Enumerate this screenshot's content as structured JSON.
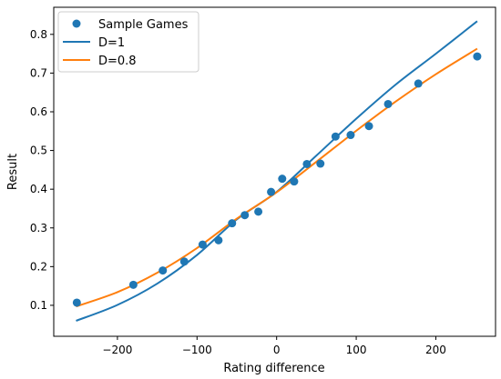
{
  "chart_data": {
    "type": "scatter",
    "title": "",
    "xlabel": "Rating difference",
    "ylabel": "Result",
    "xlim": [
      -280,
      275
    ],
    "ylim": [
      0.02,
      0.87
    ],
    "grid": false,
    "legend_position": "top-left",
    "x_ticks": [
      -200,
      -100,
      0,
      100,
      200
    ],
    "x_tick_labels": [
      "−200",
      "−100",
      "0",
      "100",
      "200"
    ],
    "y_ticks": [
      0.1,
      0.2,
      0.3,
      0.4,
      0.5,
      0.6,
      0.7,
      0.8
    ],
    "y_tick_labels": [
      "0.1",
      "0.2",
      "0.3",
      "0.4",
      "0.5",
      "0.6",
      "0.7",
      "0.8"
    ],
    "series": [
      {
        "name": "Sample Games",
        "kind": "points",
        "color": "#1f77b4",
        "x": [
          -251,
          -180,
          -143,
          -116,
          -93,
          -73,
          -56,
          -40,
          -23,
          -7,
          7,
          22,
          38,
          55,
          74,
          93,
          116,
          140,
          178,
          252
        ],
        "y": [
          0.107,
          0.153,
          0.19,
          0.213,
          0.257,
          0.268,
          0.312,
          0.333,
          0.342,
          0.393,
          0.427,
          0.42,
          0.465,
          0.466,
          0.536,
          0.54,
          0.563,
          0.62,
          0.673,
          0.743
        ]
      },
      {
        "name": "D=1",
        "kind": "line",
        "color": "#1f77b4",
        "x": [
          -252,
          -200,
          -150,
          -100,
          -50,
          0,
          50,
          100,
          150,
          200,
          252
        ],
        "y": [
          0.06,
          0.101,
          0.156,
          0.23,
          0.322,
          0.393,
          0.487,
          0.582,
          0.671,
          0.75,
          0.834
        ]
      },
      {
        "name": "D=0.8",
        "kind": "line",
        "color": "#ff7f0e",
        "x": [
          -252,
          -200,
          -150,
          -100,
          -50,
          0,
          50,
          100,
          150,
          200,
          252
        ],
        "y": [
          0.097,
          0.134,
          0.184,
          0.248,
          0.324,
          0.392,
          0.471,
          0.551,
          0.627,
          0.697,
          0.763
        ]
      }
    ]
  }
}
